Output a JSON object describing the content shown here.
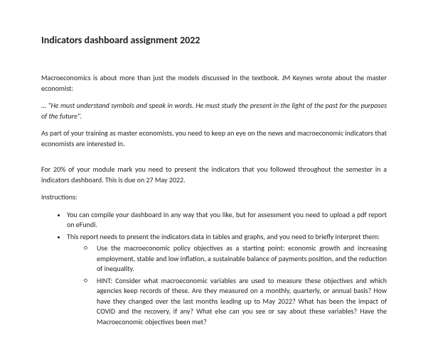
{
  "title": "Indicators dashboard assignment 2022",
  "intro1": "Macroeconomics is about more than just the models discussed in the textbook. JM Keynes wrote about the master economist:",
  "quote": "… \"He must understand symbols and speak in words. He must study the present in the light of the past for the purposes of the future\".",
  "intro2": "As part of your training as master economists, you need to keep an eye on the news and macroeconomic indicators that economists are interested in.",
  "assignment": "For 20% of your module mark you need to present the indicators that you followed throughout the semester in a indicators dashboard. This is due on 27 May 2022.",
  "instructionsLabel": "Instructions:",
  "bullet1": "You can compile your dashboard in any way that you like, but for assessment you need to upload a pdf report on eFundi.",
  "bullet2": "This report needs to present the indicators data in tables and graphs, and you need to briefly interpret them:",
  "sub1": "Use the macroeconomic policy objectives as a starting point: economic growth and increasing employment, stable and low inflation, a sustainable balance of payments position, and the reduction of inequality.",
  "sub2": "HINT: Consider what macroeconomic variables are used to measure these objectives and which agencies keep records of these. Are they measured on a monthly, quarterly, or annual basis? How have they changed over the last months leading up to May 2022? What has been the impact of COVID and the recovery, if any? What else can you see or say about these variables? Have the Macroeconomic objectives been met?"
}
